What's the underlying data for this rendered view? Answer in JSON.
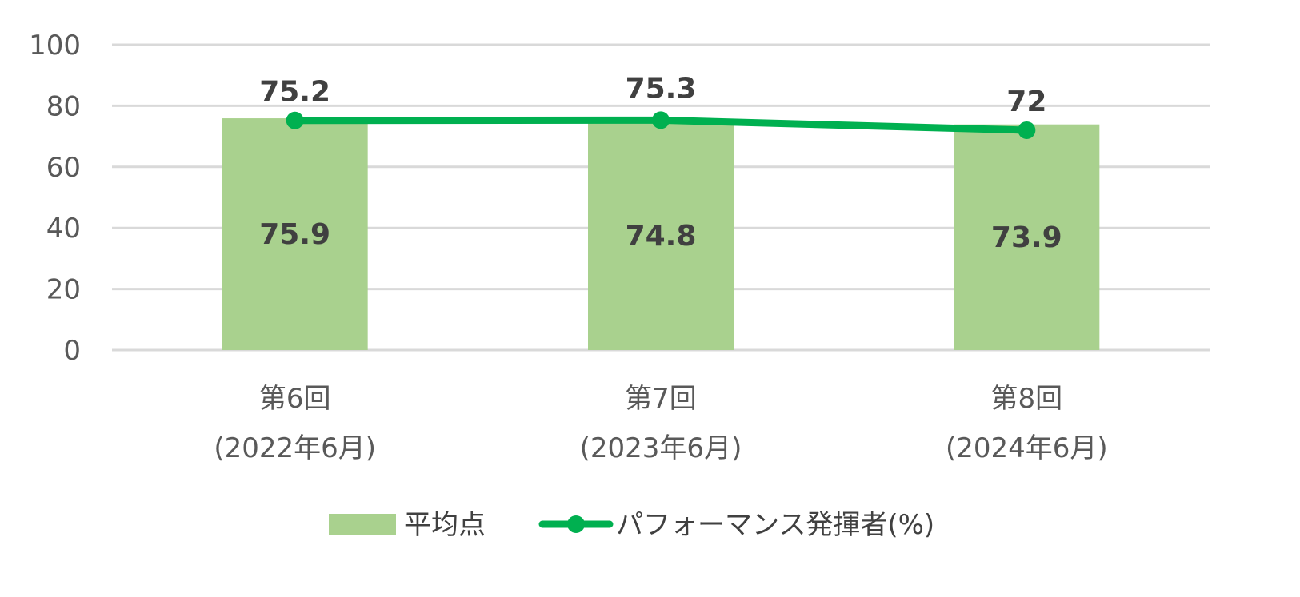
{
  "chart_data": {
    "type": "bar",
    "categories": [
      [
        "第6回",
        "(2022年6月)"
      ],
      [
        "第7回",
        "(2023年6月)"
      ],
      [
        "第8回",
        "(2024年6月)"
      ]
    ],
    "ylim": [
      0,
      100
    ],
    "yticks": [
      0,
      20,
      40,
      60,
      80,
      100
    ],
    "grid": true,
    "legend_position": "bottom",
    "series": [
      {
        "name": "平均点",
        "type": "bar",
        "color": "#a9d18e",
        "values": [
          75.9,
          74.8,
          73.9
        ],
        "labels": [
          "75.9",
          "74.8",
          "73.9"
        ]
      },
      {
        "name": "パフォーマンス発揮者(%)",
        "type": "line",
        "color": "#00b050",
        "values": [
          75.2,
          75.3,
          72
        ],
        "labels": [
          "75.2",
          "75.3",
          "72"
        ]
      }
    ],
    "colors": {
      "grid": "#d9d9d9",
      "axis_text": "#595959",
      "label_text": "#404040"
    }
  }
}
